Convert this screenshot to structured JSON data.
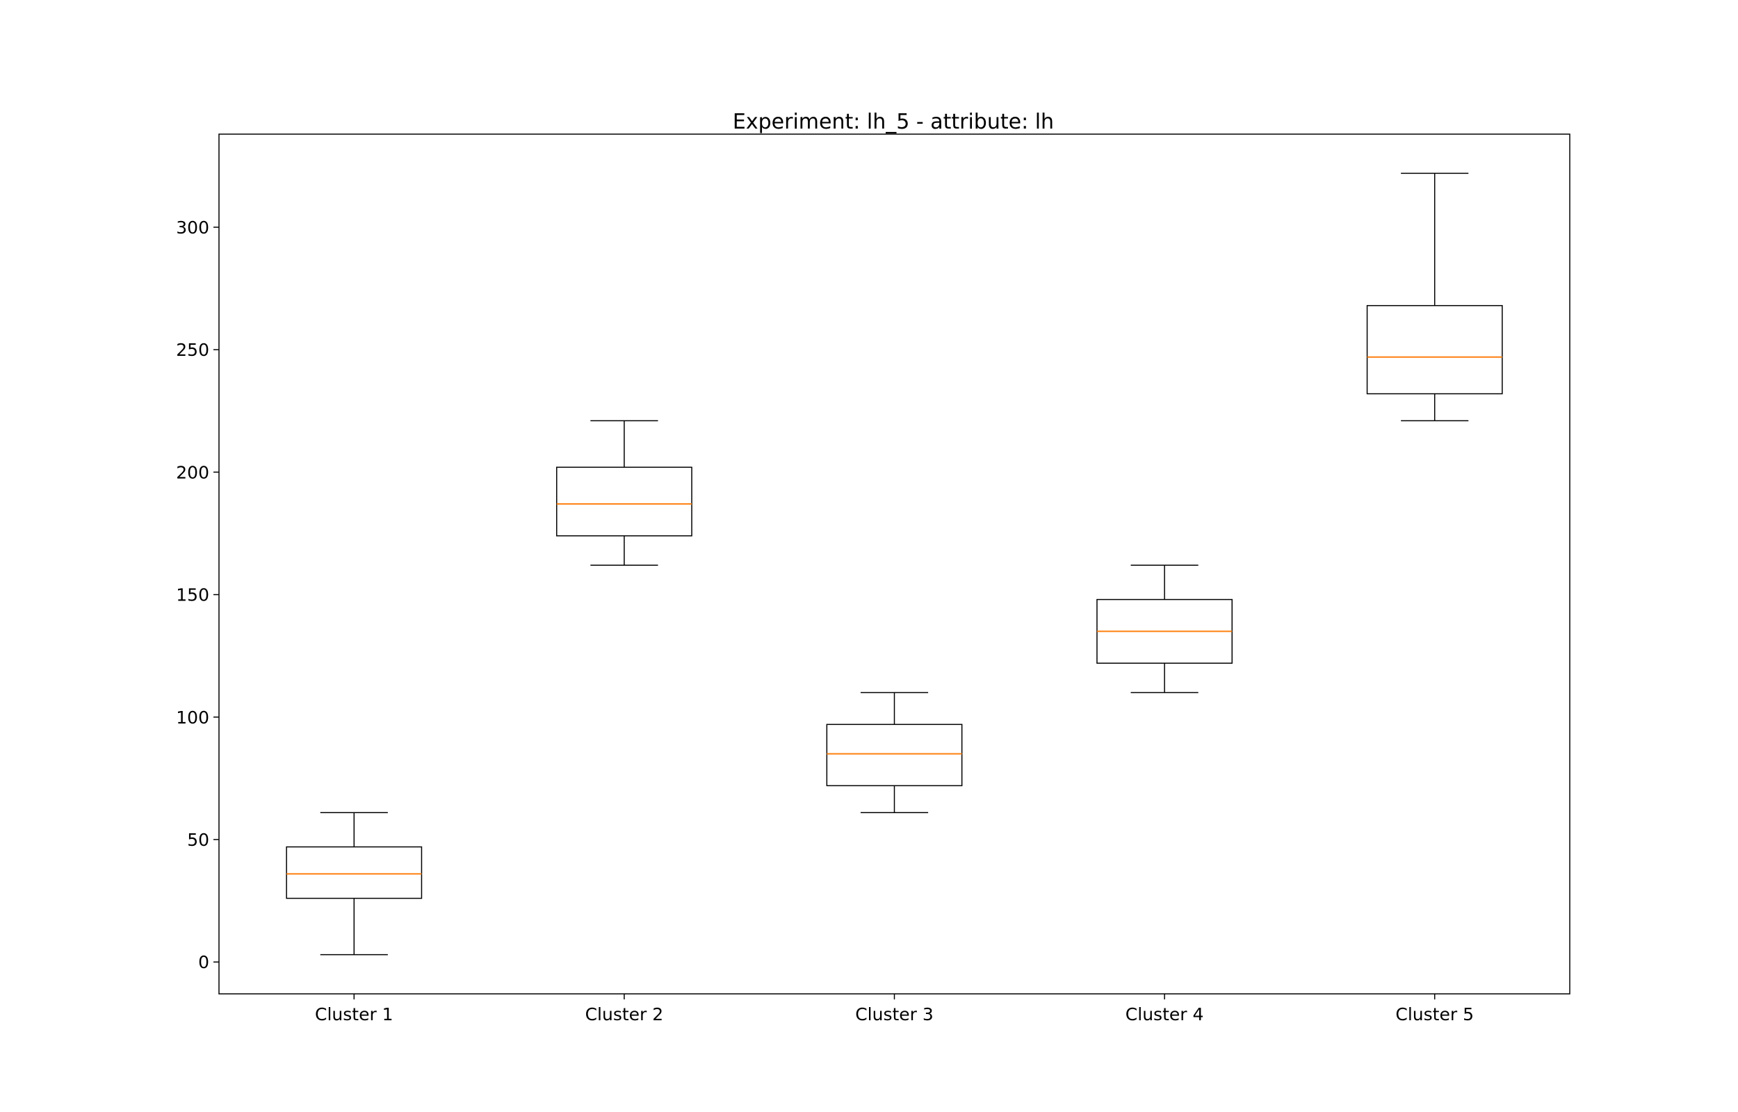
{
  "chart_data": {
    "type": "box",
    "title": "Experiment: lh_5 - attribute: lh",
    "xlabel": "",
    "ylabel": "",
    "categories": [
      "Cluster 1",
      "Cluster 2",
      "Cluster 3",
      "Cluster 4",
      "Cluster 5"
    ],
    "boxes": [
      {
        "category": "Cluster 1",
        "whisker_low": 3,
        "q1": 26,
        "median": 36,
        "q3": 47,
        "whisker_high": 61
      },
      {
        "category": "Cluster 2",
        "whisker_low": 162,
        "q1": 174,
        "median": 187,
        "q3": 202,
        "whisker_high": 221
      },
      {
        "category": "Cluster 3",
        "whisker_low": 61,
        "q1": 72,
        "median": 85,
        "q3": 97,
        "whisker_high": 110
      },
      {
        "category": "Cluster 4",
        "whisker_low": 110,
        "q1": 122,
        "median": 135,
        "q3": 148,
        "whisker_high": 162
      },
      {
        "category": "Cluster 5",
        "whisker_low": 221,
        "q1": 232,
        "median": 247,
        "q3": 268,
        "whisker_high": 322
      }
    ],
    "yticks": [
      0,
      50,
      100,
      150,
      200,
      250,
      300
    ],
    "ylim": [
      -13,
      338
    ],
    "grid": false,
    "colors": {
      "box": "#000000",
      "median": "#ff7f0e",
      "frame": "#000000"
    }
  }
}
